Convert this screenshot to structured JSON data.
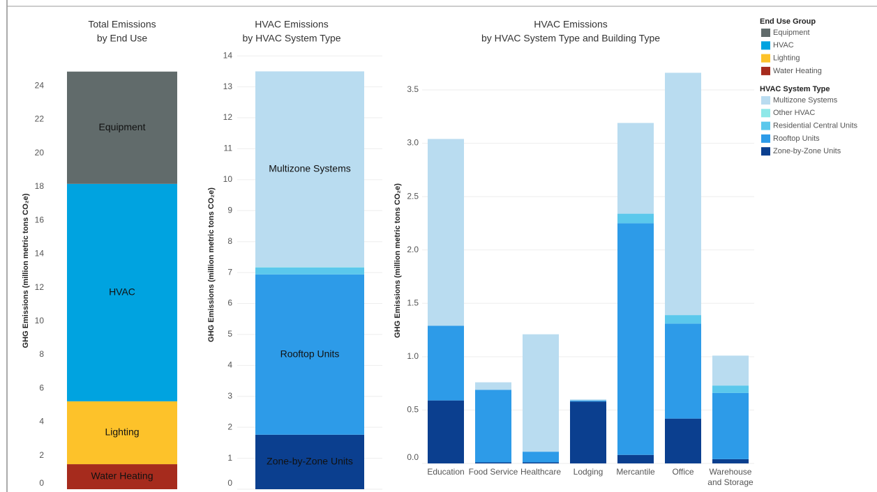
{
  "chart_data": [
    {
      "type": "bar",
      "stacked": true,
      "title": [
        "Total Emissions",
        "by End Use"
      ],
      "y_label": "GHG Emissions (million metric tons CO₂e)",
      "legend_title": "End Use Group",
      "series": [
        {
          "name": "Equipment",
          "color": "#616b6b",
          "values": [
            6.68
          ]
        },
        {
          "name": "HVAC",
          "color": "#00a3e0",
          "values": [
            12.94
          ]
        },
        {
          "name": "Lighting",
          "color": "#fdc22a",
          "values": [
            3.74
          ]
        },
        {
          "name": "Water Heating",
          "color": "#a62b1d",
          "values": [
            1.49
          ]
        }
      ],
      "ylim": [
        0,
        26
      ],
      "yticks": [
        0,
        2,
        4,
        6,
        8,
        10,
        12,
        14,
        16,
        18,
        20,
        22,
        24
      ],
      "grid": false
    },
    {
      "type": "bar",
      "stacked": true,
      "title": [
        "HVAC Emissions",
        "by HVAC System Type"
      ],
      "y_label": "GHG Emissions (million metric tons CO₂e)",
      "series": [
        {
          "name": "Multizone Systems",
          "color": "#b9dcf0",
          "values": [
            6.33
          ]
        },
        {
          "name": "Other HVAC",
          "color": "#8ee8e8",
          "values": [
            0.01
          ]
        },
        {
          "name": "Residential Central Units",
          "color": "#5bc8ec",
          "values": [
            0.22
          ]
        },
        {
          "name": "Rooftop Units",
          "color": "#2d9be8",
          "values": [
            5.18
          ]
        },
        {
          "name": "Zone-by-Zone Units",
          "color": "#0b3f8f",
          "values": [
            1.76
          ]
        }
      ],
      "ylim": [
        0,
        14.5
      ],
      "yticks": [
        0,
        1,
        2,
        3,
        4,
        5,
        6,
        7,
        8,
        9,
        10,
        11,
        12,
        13,
        14
      ],
      "grid": true
    },
    {
      "type": "bar",
      "stacked": true,
      "title": [
        "HVAC Emissions",
        "by HVAC System Type and Building Type"
      ],
      "y_label": "GHG Emissions (million metric tons CO₂e)",
      "legend_title": "HVAC System Type",
      "categories": [
        "Education",
        "Food Service",
        "Healthcare",
        "Lodging",
        "Mercantile",
        "Office",
        "Warehouse and Storage"
      ],
      "series": [
        {
          "name": "Multizone Systems",
          "color": "#b9dcf0",
          "values": [
            1.75,
            0.07,
            1.1,
            0.01,
            0.85,
            2.27,
            0.28
          ]
        },
        {
          "name": "Other HVAC",
          "color": "#8ee8e8",
          "values": [
            0,
            0,
            0,
            0,
            0,
            0,
            0
          ]
        },
        {
          "name": "Residential Central Units",
          "color": "#5bc8ec",
          "values": [
            0,
            0,
            0,
            0,
            0.09,
            0.08,
            0.07
          ]
        },
        {
          "name": "Rooftop Units",
          "color": "#2d9be8",
          "values": [
            0.7,
            0.68,
            0.1,
            0.01,
            2.17,
            0.89,
            0.62
          ]
        },
        {
          "name": "Zone-by-Zone Units",
          "color": "#0b3f8f",
          "values": [
            0.59,
            0.01,
            0.01,
            0.58,
            0.08,
            0.42,
            0.04
          ]
        }
      ],
      "ylim": [
        0,
        3.8
      ],
      "yticks": [
        {
          "value": 0,
          "label": "0.0"
        },
        {
          "value": 0.5,
          "label": "0.5"
        },
        {
          "value": 1,
          "label": "1.0"
        },
        {
          "value": 1.5,
          "label": "1.5"
        },
        {
          "value": 2,
          "label": "2.0"
        },
        {
          "value": 2.5,
          "label": "2.5"
        },
        {
          "value": 3,
          "label": "3.0"
        },
        {
          "value": 3.5,
          "label": "3.5"
        }
      ],
      "grid": true
    }
  ]
}
